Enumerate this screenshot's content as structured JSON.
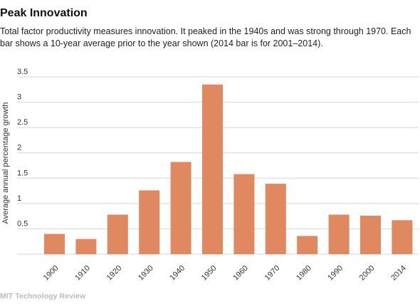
{
  "header": {
    "title": "Peak Innovation",
    "subtitle": "Total factor productivity measures innovation. It peaked in the 1940s and was strong through 1970. Each bar shows a 10-year average prior to the year shown (2014 bar is for 2001–2014)."
  },
  "footer": {
    "brand": "MIT Technology Review"
  },
  "chart_data": {
    "type": "bar",
    "categories": [
      "1900",
      "1910",
      "1920",
      "1930",
      "1940",
      "1950",
      "1960",
      "1970",
      "1980",
      "1990",
      "2000",
      "2014"
    ],
    "values": [
      0.4,
      0.3,
      0.78,
      1.26,
      1.82,
      3.35,
      1.58,
      1.39,
      0.36,
      0.78,
      0.76,
      0.67
    ],
    "title": "Peak Innovation",
    "xlabel": "",
    "ylabel": "Average annual percentage growth",
    "yticks": [
      "0.5",
      "1",
      "1.5",
      "2",
      "2.5",
      "3",
      "3.5"
    ],
    "ylim": [
      0,
      3.5
    ],
    "grid": true,
    "bar_color": "#e08860",
    "grid_color": "#d6d6d6"
  }
}
